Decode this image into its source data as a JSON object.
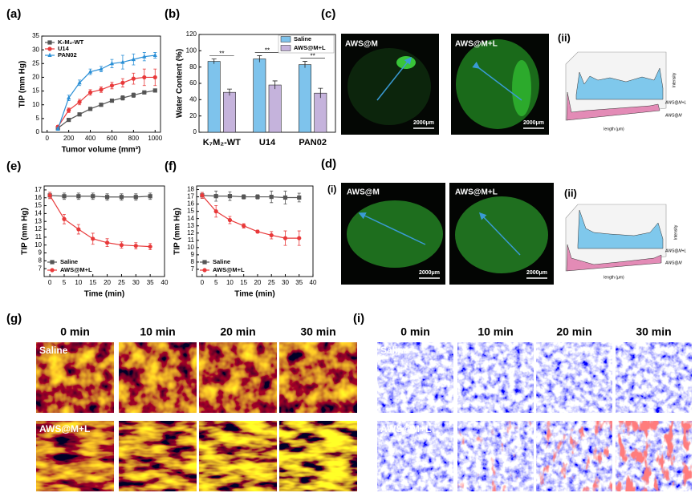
{
  "chart_data": [
    {
      "type": "line",
      "label": "(a)",
      "x_label": "Tumor volume (mm³)",
      "y_label": "TIP (mm Hg)",
      "x": [
        100,
        200,
        300,
        400,
        500,
        600,
        700,
        800,
        900,
        1000
      ],
      "series": [
        {
          "name": "K₇M₂-WT",
          "color": "#555555",
          "marker": "square",
          "values": [
            1.5,
            4.5,
            6.5,
            8.5,
            10,
            11.5,
            12.5,
            13.5,
            14.5,
            15.2
          ],
          "errors": [
            0.5,
            0.5,
            0.5,
            0.5,
            0.5,
            0.5,
            0.8,
            0.8,
            0.5,
            0.5
          ]
        },
        {
          "name": "U14",
          "color": "#e8393a",
          "marker": "circle",
          "values": [
            2,
            8,
            11,
            14.5,
            15.5,
            17,
            18,
            19.5,
            20,
            20
          ],
          "errors": [
            0.5,
            0.8,
            1,
            1,
            1,
            1.2,
            1.5,
            2,
            3,
            3
          ]
        },
        {
          "name": "PAN02",
          "color": "#2a8fd6",
          "marker": "triangle",
          "values": [
            1.2,
            12.5,
            18,
            22,
            23,
            25,
            25.5,
            26.5,
            27.5,
            28
          ],
          "errors": [
            0.5,
            1,
            1,
            1,
            1,
            1.5,
            2.5,
            2,
            1.5,
            1
          ]
        }
      ],
      "xlim": [
        -50,
        1050
      ],
      "xticks": [
        0,
        200,
        400,
        600,
        800,
        1000
      ],
      "ylim": [
        0,
        35
      ],
      "yticks": [
        0,
        5,
        10,
        15,
        20,
        25,
        30,
        35
      ],
      "legend": "upper left"
    },
    {
      "type": "bar",
      "label": "(b)",
      "y_label": "Water Content (%)",
      "categories": [
        "K₇M₂-WT",
        "U14",
        "PAN02"
      ],
      "series": [
        {
          "name": "Saline",
          "color": "#7ec3ec",
          "values": [
            87,
            90,
            83
          ],
          "errors": [
            3,
            4,
            4
          ]
        },
        {
          "name": "AWS@M+L",
          "color": "#c5b3dc",
          "values": [
            49,
            58,
            48
          ],
          "errors": [
            4,
            5,
            6
          ]
        }
      ],
      "annotations": [
        "**",
        "**",
        "**"
      ],
      "ylim": [
        0,
        120
      ],
      "yticks": [
        0,
        20,
        40,
        60,
        80,
        100,
        120
      ],
      "legend": "upper right"
    },
    {
      "type": "line",
      "label": "(e)",
      "x_label": "Time (min)",
      "y_label": "TIP (mm Hg)",
      "x": [
        0,
        5,
        10,
        15,
        20,
        25,
        30,
        35
      ],
      "series": [
        {
          "name": "Saline",
          "color": "#555555",
          "marker": "square",
          "values": [
            16.3,
            16.2,
            16.2,
            16.2,
            16.1,
            16.1,
            16.1,
            16.2
          ],
          "errors": [
            0.4,
            0.4,
            0.4,
            0.4,
            0.4,
            0.4,
            0.4,
            0.4
          ]
        },
        {
          "name": "AWS@M+L",
          "color": "#e8393a",
          "marker": "circle",
          "values": [
            16.3,
            13.3,
            12,
            10.8,
            10.3,
            10,
            9.9,
            9.8
          ],
          "errors": [
            0.4,
            0.6,
            0.6,
            0.7,
            0.5,
            0.4,
            0.4,
            0.4
          ]
        }
      ],
      "xlim": [
        -2,
        40
      ],
      "xticks": [
        0,
        5,
        10,
        15,
        20,
        25,
        30,
        35,
        40
      ],
      "ylim": [
        6,
        17.5
      ],
      "yticks": [
        7,
        8,
        9,
        10,
        11,
        12,
        13,
        14,
        15,
        16,
        17
      ],
      "legend": "lower left"
    },
    {
      "type": "line",
      "label": "(f)",
      "x_label": "Time (min)",
      "y_label": "TIP (mm Hg)",
      "x": [
        0,
        5,
        10,
        15,
        20,
        25,
        30,
        35
      ],
      "series": [
        {
          "name": "Saline",
          "color": "#555555",
          "marker": "square",
          "values": [
            17.2,
            17.1,
            17.1,
            17.0,
            17.0,
            17.0,
            16.9,
            16.9
          ],
          "errors": [
            0.4,
            0.7,
            0.6,
            0.3,
            0.3,
            0.8,
            0.9,
            0.6
          ]
        },
        {
          "name": "AWS@M+L",
          "color": "#e8393a",
          "marker": "circle",
          "values": [
            17.2,
            15,
            13.8,
            13,
            12.2,
            11.7,
            11.3,
            11.3
          ],
          "errors": [
            0.4,
            0.8,
            0.5,
            0.3,
            0.2,
            0.5,
            1,
            1
          ]
        }
      ],
      "xlim": [
        -2,
        40
      ],
      "xticks": [
        0,
        5,
        10,
        15,
        20,
        25,
        30,
        35,
        40
      ],
      "ylim": [
        6,
        18.5
      ],
      "yticks": [
        7,
        8,
        9,
        10,
        11,
        12,
        13,
        14,
        15,
        16,
        17,
        18
      ],
      "legend": "lower left"
    }
  ],
  "panel_c": {
    "label": "(c)",
    "images": [
      {
        "title": "AWS@M",
        "scale_bar": "2000μm"
      },
      {
        "title": "AWS@M+L",
        "scale_bar": "2000μm"
      }
    ],
    "profile": {
      "label": "(ii)",
      "y_label": "Intensity",
      "x_label": "length (μm)",
      "series": [
        "AWS@M+L",
        "AWS@M"
      ]
    }
  },
  "panel_d": {
    "label": "(d)",
    "sublabel": "(i)",
    "images": [
      {
        "title": "AWS@M",
        "scale_bar": "2000μm"
      },
      {
        "title": "AWS@M+L",
        "scale_bar": "2000μm"
      }
    ],
    "profile": {
      "label": "(ii)",
      "y_label": "Intensity",
      "x_label": "length (μm)",
      "series": [
        "AWS@M+L",
        "AWS@M"
      ]
    }
  },
  "panel_g": {
    "label": "(g)",
    "columns": [
      "0 min",
      "10 min",
      "20 min",
      "30 min"
    ],
    "rows": [
      "Saline",
      "AWS@M+L"
    ]
  },
  "panel_i": {
    "label": "(i)",
    "columns": [
      "0 min",
      "10 min",
      "20 min",
      "30 min"
    ],
    "rows": [
      "Saline",
      "AWS@M+L"
    ]
  }
}
